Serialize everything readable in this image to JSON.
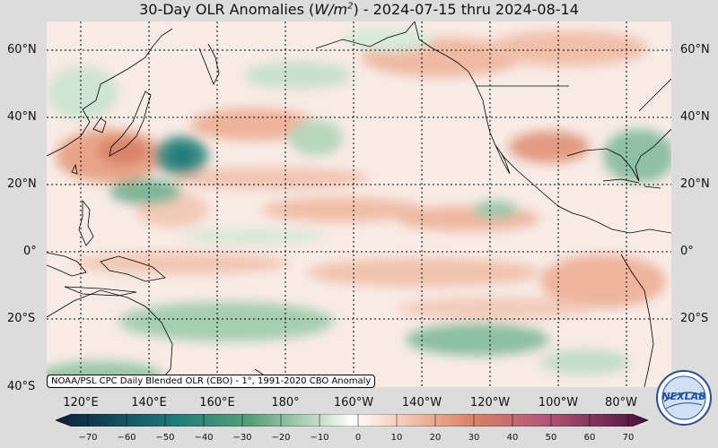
{
  "title": {
    "prefix": "30-Day OLR Anomalies (",
    "unit_base": "W/m",
    "unit_exp": "2",
    "suffix": ") - 2024-07-15 thru 2024-08-14"
  },
  "map": {
    "lat_labels": [
      "60°N",
      "40°N",
      "20°N",
      "0°",
      "20°S",
      "40°S"
    ],
    "lon_labels": [
      "120°E",
      "140°E",
      "160°E",
      "180°",
      "160°W",
      "140°W",
      "120°W",
      "100°W",
      "80°W"
    ],
    "source_note": "NOAA/PSL CPC Daily Blended OLR (CBO) - 1°, 1991-2020 CBO Anomaly"
  },
  "colorbar": {
    "ticks": [
      "−70",
      "−60",
      "−50",
      "−40",
      "−30",
      "−20",
      "−10",
      "0",
      "10",
      "20",
      "30",
      "40",
      "50",
      "60",
      "70"
    ],
    "colors": {
      "neg_extreme": "#0b1e3d",
      "neg_strong": "#1f7a7a",
      "neg_mid": "#58a07a",
      "neg_weak": "#a9cfb0",
      "zero": "#ffffff",
      "pos_weak": "#f1c2ac",
      "pos_mid": "#d98468",
      "pos_strong": "#b65a78",
      "pos_extreme": "#4a0f3a"
    }
  },
  "logo": {
    "text": "NEXLAB"
  }
}
